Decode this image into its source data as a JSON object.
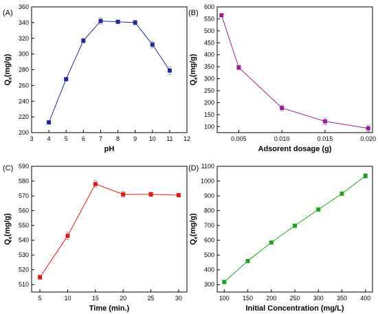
{
  "chart_data": [
    {
      "type": "line",
      "panel_label": "(A)",
      "xlabel": "pH",
      "ylabel_main": "Q",
      "ylabel_sub": "e",
      "ylabel_rest": "(mg/g)",
      "color": "#1f2a99",
      "xlim": [
        3,
        12
      ],
      "ylim": [
        200,
        360
      ],
      "xticks": [
        "3",
        "4",
        "5",
        "6",
        "7",
        "8",
        "9",
        "10",
        "11",
        "12"
      ],
      "yticks": [
        "200",
        "220",
        "240",
        "260",
        "280",
        "300",
        "320",
        "340",
        "360"
      ],
      "xtick_values": [
        3,
        4,
        5,
        6,
        7,
        8,
        9,
        10,
        11,
        12
      ],
      "ytick_values": [
        200,
        220,
        240,
        260,
        280,
        300,
        320,
        340,
        360
      ],
      "x": [
        4,
        5,
        6,
        7,
        8,
        9,
        10,
        11
      ],
      "y": [
        213,
        268,
        317,
        342,
        341,
        340,
        312,
        279
      ],
      "err": [
        2,
        2,
        3,
        4,
        2,
        3,
        4,
        5
      ]
    },
    {
      "type": "line",
      "panel_label": "(B)",
      "xlabel": "Adsorent dosage (g)",
      "ylabel_main": "Q",
      "ylabel_sub": "e",
      "ylabel_rest": "(mg/g)",
      "color": "#9a1e9a",
      "xlim": [
        0.0025,
        0.0205
      ],
      "ylim": [
        75,
        600
      ],
      "xticks": [
        "0.005",
        "0.010",
        "0.015",
        "0.020"
      ],
      "yticks": [
        "100",
        "150",
        "200",
        "250",
        "300",
        "350",
        "400",
        "450",
        "500",
        "550",
        "600"
      ],
      "xtick_values": [
        0.005,
        0.01,
        0.015,
        0.02
      ],
      "ytick_values": [
        100,
        150,
        200,
        250,
        300,
        350,
        400,
        450,
        500,
        550,
        600
      ],
      "x": [
        0.003,
        0.005,
        0.01,
        0.015,
        0.02
      ],
      "y": [
        565,
        347,
        178,
        122,
        93
      ],
      "err": [
        6,
        10,
        12,
        14,
        14
      ]
    },
    {
      "type": "line",
      "panel_label": "(C)",
      "xlabel": "Time (min.)",
      "ylabel_main": "Q",
      "ylabel_sub": "e",
      "ylabel_rest": "(mg/g)",
      "color": "#dd1a1a",
      "xlim": [
        3.5,
        31.5
      ],
      "ylim": [
        505,
        590
      ],
      "xticks": [
        "5",
        "10",
        "15",
        "20",
        "25",
        "30"
      ],
      "yticks": [
        "510",
        "520",
        "530",
        "540",
        "550",
        "560",
        "570",
        "580",
        "590"
      ],
      "xtick_values": [
        5,
        10,
        15,
        20,
        25,
        30
      ],
      "ytick_values": [
        510,
        520,
        530,
        540,
        550,
        560,
        570,
        580,
        590
      ],
      "x": [
        5,
        10,
        15,
        20,
        25,
        30
      ],
      "y": [
        515,
        543,
        578,
        571,
        571,
        570.5
      ],
      "err": [
        1.5,
        2.5,
        2.5,
        2,
        1.5,
        1
      ]
    },
    {
      "type": "line",
      "panel_label": "(D)",
      "xlabel": "Initial Concentration (mg/L)",
      "ylabel_main": "Q",
      "ylabel_sub": "e",
      "ylabel_rest": "(mg/g)",
      "color": "#22a022",
      "xlim": [
        85,
        415
      ],
      "ylim": [
        250,
        1100
      ],
      "xticks": [
        "100",
        "150",
        "200",
        "250",
        "300",
        "350",
        "400"
      ],
      "yticks": [
        "300",
        "400",
        "500",
        "600",
        "700",
        "800",
        "900",
        "1000",
        "1100"
      ],
      "xtick_values": [
        100,
        150,
        200,
        250,
        300,
        350,
        400
      ],
      "ytick_values": [
        300,
        400,
        500,
        600,
        700,
        800,
        900,
        1000,
        1100
      ],
      "x": [
        100,
        150,
        200,
        250,
        300,
        350,
        400
      ],
      "y": [
        318,
        460,
        585,
        698,
        808,
        915,
        1035
      ],
      "err": [
        12,
        8,
        10,
        10,
        10,
        12,
        15
      ]
    }
  ]
}
